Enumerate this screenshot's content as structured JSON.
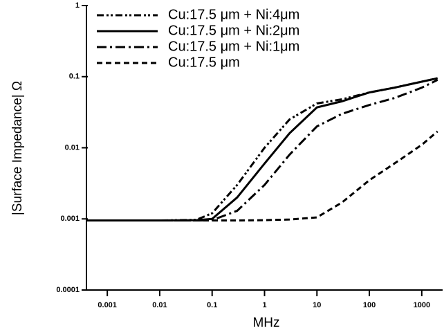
{
  "chart_data": {
    "type": "line",
    "x_label": "MHz",
    "y_label": "|Surface Impedance| Ω",
    "x": [
      0.0004,
      0.001,
      0.01,
      0.05,
      0.1,
      0.3,
      1,
      3,
      10,
      30,
      100,
      300,
      1000,
      2000
    ],
    "series": [
      {
        "name": "Cu:17.5 μm + Ni:4μm",
        "color": "#000000",
        "dash": "10 4 3 3 3 4",
        "values": [
          0.00095,
          0.00095,
          0.00095,
          0.00097,
          0.0012,
          0.003,
          0.01,
          0.025,
          0.042,
          0.048,
          0.06,
          0.07,
          0.085,
          0.095
        ]
      },
      {
        "name": "Cu:17.5 μm + Ni:2μm",
        "color": "#000000",
        "dash": "none",
        "values": [
          0.00095,
          0.00095,
          0.00095,
          0.00096,
          0.001,
          0.002,
          0.006,
          0.016,
          0.037,
          0.045,
          0.06,
          0.07,
          0.085,
          0.095
        ]
      },
      {
        "name": "Cu:17.5 μm + Ni:1μm",
        "color": "#000000",
        "dash": "14 5 3 5",
        "values": [
          0.00095,
          0.00095,
          0.00095,
          0.00095,
          0.00096,
          0.0013,
          0.003,
          0.008,
          0.02,
          0.03,
          0.04,
          0.05,
          0.07,
          0.09
        ]
      },
      {
        "name": "Cu:17.5 μm",
        "color": "#000000",
        "dash": "8 5",
        "values": [
          0.00095,
          0.00095,
          0.00095,
          0.00095,
          0.00095,
          0.00095,
          0.00096,
          0.00098,
          0.00105,
          0.0017,
          0.0035,
          0.006,
          0.011,
          0.017
        ]
      }
    ],
    "log_x": true,
    "log_y": true,
    "xlim": [
      0.0004,
      2500
    ],
    "ylim": [
      0.0001,
      1
    ],
    "xticks": [
      0.001,
      0.01,
      0.1,
      1,
      10,
      100,
      1000
    ],
    "yticks": [
      0.0001,
      0.001,
      0.01,
      0.1,
      1
    ],
    "legend": "top-left"
  }
}
